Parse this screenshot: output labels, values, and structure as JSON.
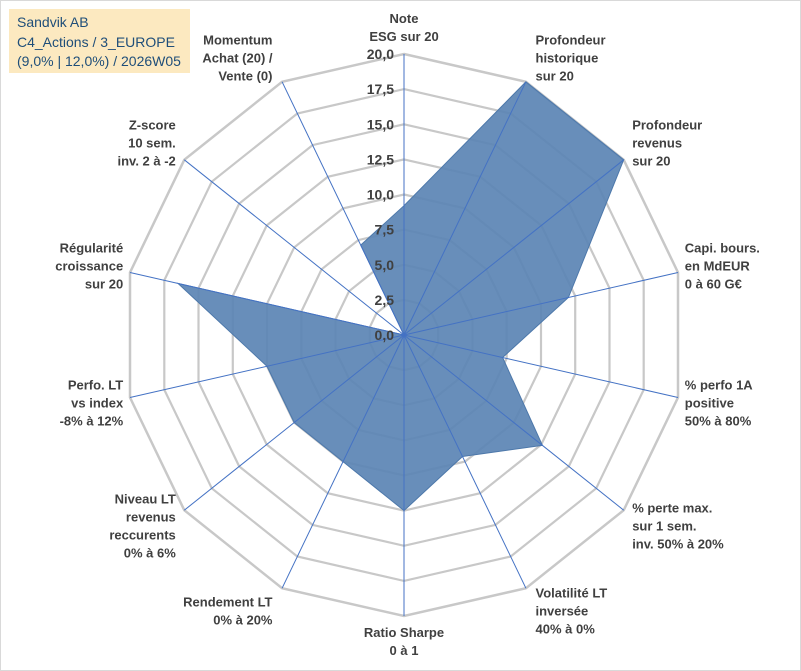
{
  "title": {
    "line1": "Sandvik AB",
    "line2": "C4_Actions / 3_EUROPE",
    "line3": "(9,0% | 12,0%) / 2026W05"
  },
  "colors": {
    "fill": "#5b84b4",
    "stroke": "#4d78aa",
    "grid": "#c8c8c8",
    "spoke": "#4472c4",
    "title_bg": "#fce9c0",
    "title_text": "#1f4e79"
  },
  "chart_data": {
    "type": "radar",
    "rmin": 0,
    "rmax": 20,
    "grid_step": 2.5,
    "tick_labels": [
      "0,0",
      "2,5",
      "5,0",
      "7,5",
      "10,0",
      "12,5",
      "15,0",
      "17,5",
      "20,0"
    ],
    "axes": [
      {
        "label": [
          "Note",
          "ESG sur 20"
        ],
        "value": 9.2
      },
      {
        "label": [
          "Profondeur",
          "historique",
          "sur 20"
        ],
        "value": 20.0
      },
      {
        "label": [
          "Profondeur",
          "revenus",
          "sur 20"
        ],
        "value": 20.0
      },
      {
        "label": [
          "Capi. bours.",
          "en MdEUR",
          "0 à 60 G€"
        ],
        "value": 12.0
      },
      {
        "label": [
          "% perfo 1A",
          "positive",
          "50% à 80%"
        ],
        "value": 7.2
      },
      {
        "label": [
          "% perte max.",
          "sur 1 sem.",
          "inv. 50% à 20%"
        ],
        "value": 12.6
      },
      {
        "label": [
          "Volatilité LT",
          "inversée",
          "40% à 0%"
        ],
        "value": 9.6
      },
      {
        "label": [
          "Ratio Sharpe",
          "0 à 1"
        ],
        "value": 12.5
      },
      {
        "label": [
          "Rendement LT",
          "0% à 20%"
        ],
        "value": 10.0
      },
      {
        "label": [
          "Niveau LT",
          "revenus",
          "reccurents",
          "0% à 6%"
        ],
        "value": 10.0
      },
      {
        "label": [
          "Perfo. LT",
          "vs index",
          "-8% à 12%"
        ],
        "value": 10.0
      },
      {
        "label": [
          "Régularité",
          "croissance",
          "sur 20"
        ],
        "value": 16.5
      },
      {
        "label": [
          "Z-score",
          "10 sem.",
          "inv. 2 à -2"
        ],
        "value": 0.0
      },
      {
        "label": [
          "Momentum",
          "Achat (20) /",
          "Vente (0)"
        ],
        "value": 7.1
      }
    ]
  }
}
